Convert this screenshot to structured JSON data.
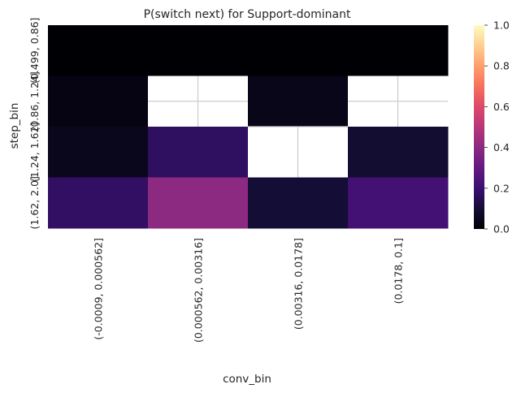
{
  "chart_data": {
    "type": "heatmap",
    "title": "P(switch next) for Support-dominant",
    "xlabel": "conv_bin",
    "ylabel": "step_bin",
    "x_categories": [
      "(-0.0009, 0.000562]",
      "(0.000562, 0.00316]",
      "(0.00316, 0.0178]",
      "(0.0178, 0.1]"
    ],
    "y_categories": [
      "(0.499, 0.86]",
      "(0.86, 1.24]",
      "(1.24, 1.62]",
      "(1.62, 2.0]"
    ],
    "values": [
      [
        0.0,
        0.0,
        0.0,
        0.0
      ],
      [
        0.03,
        null,
        0.04,
        null
      ],
      [
        0.05,
        0.17,
        null,
        0.09
      ],
      [
        0.18,
        0.4,
        0.1,
        0.22
      ]
    ],
    "colormap": "magma",
    "vmin": 0.0,
    "vmax": 1.0,
    "colorbar_ticks": [
      0.0,
      0.2,
      0.4,
      0.6,
      0.8,
      1.0
    ],
    "colorbar_tick_labels": [
      "0.0",
      "0.2",
      "0.4",
      "0.6",
      "0.8",
      "1.0"
    ],
    "missing_color": "#ffffff"
  }
}
